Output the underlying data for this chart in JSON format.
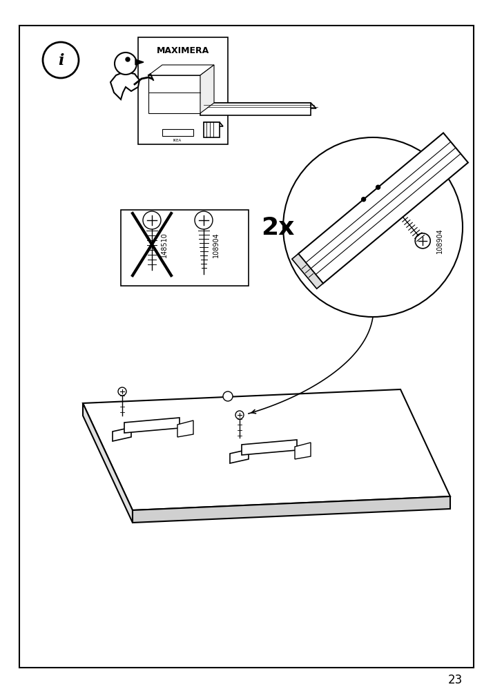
{
  "page_number": "23",
  "bg": "#ffffff",
  "border": "#000000",
  "screw_labels": [
    "148510",
    "108904"
  ],
  "quantity_label": "2x",
  "maximera_label": "MAXIMERA"
}
